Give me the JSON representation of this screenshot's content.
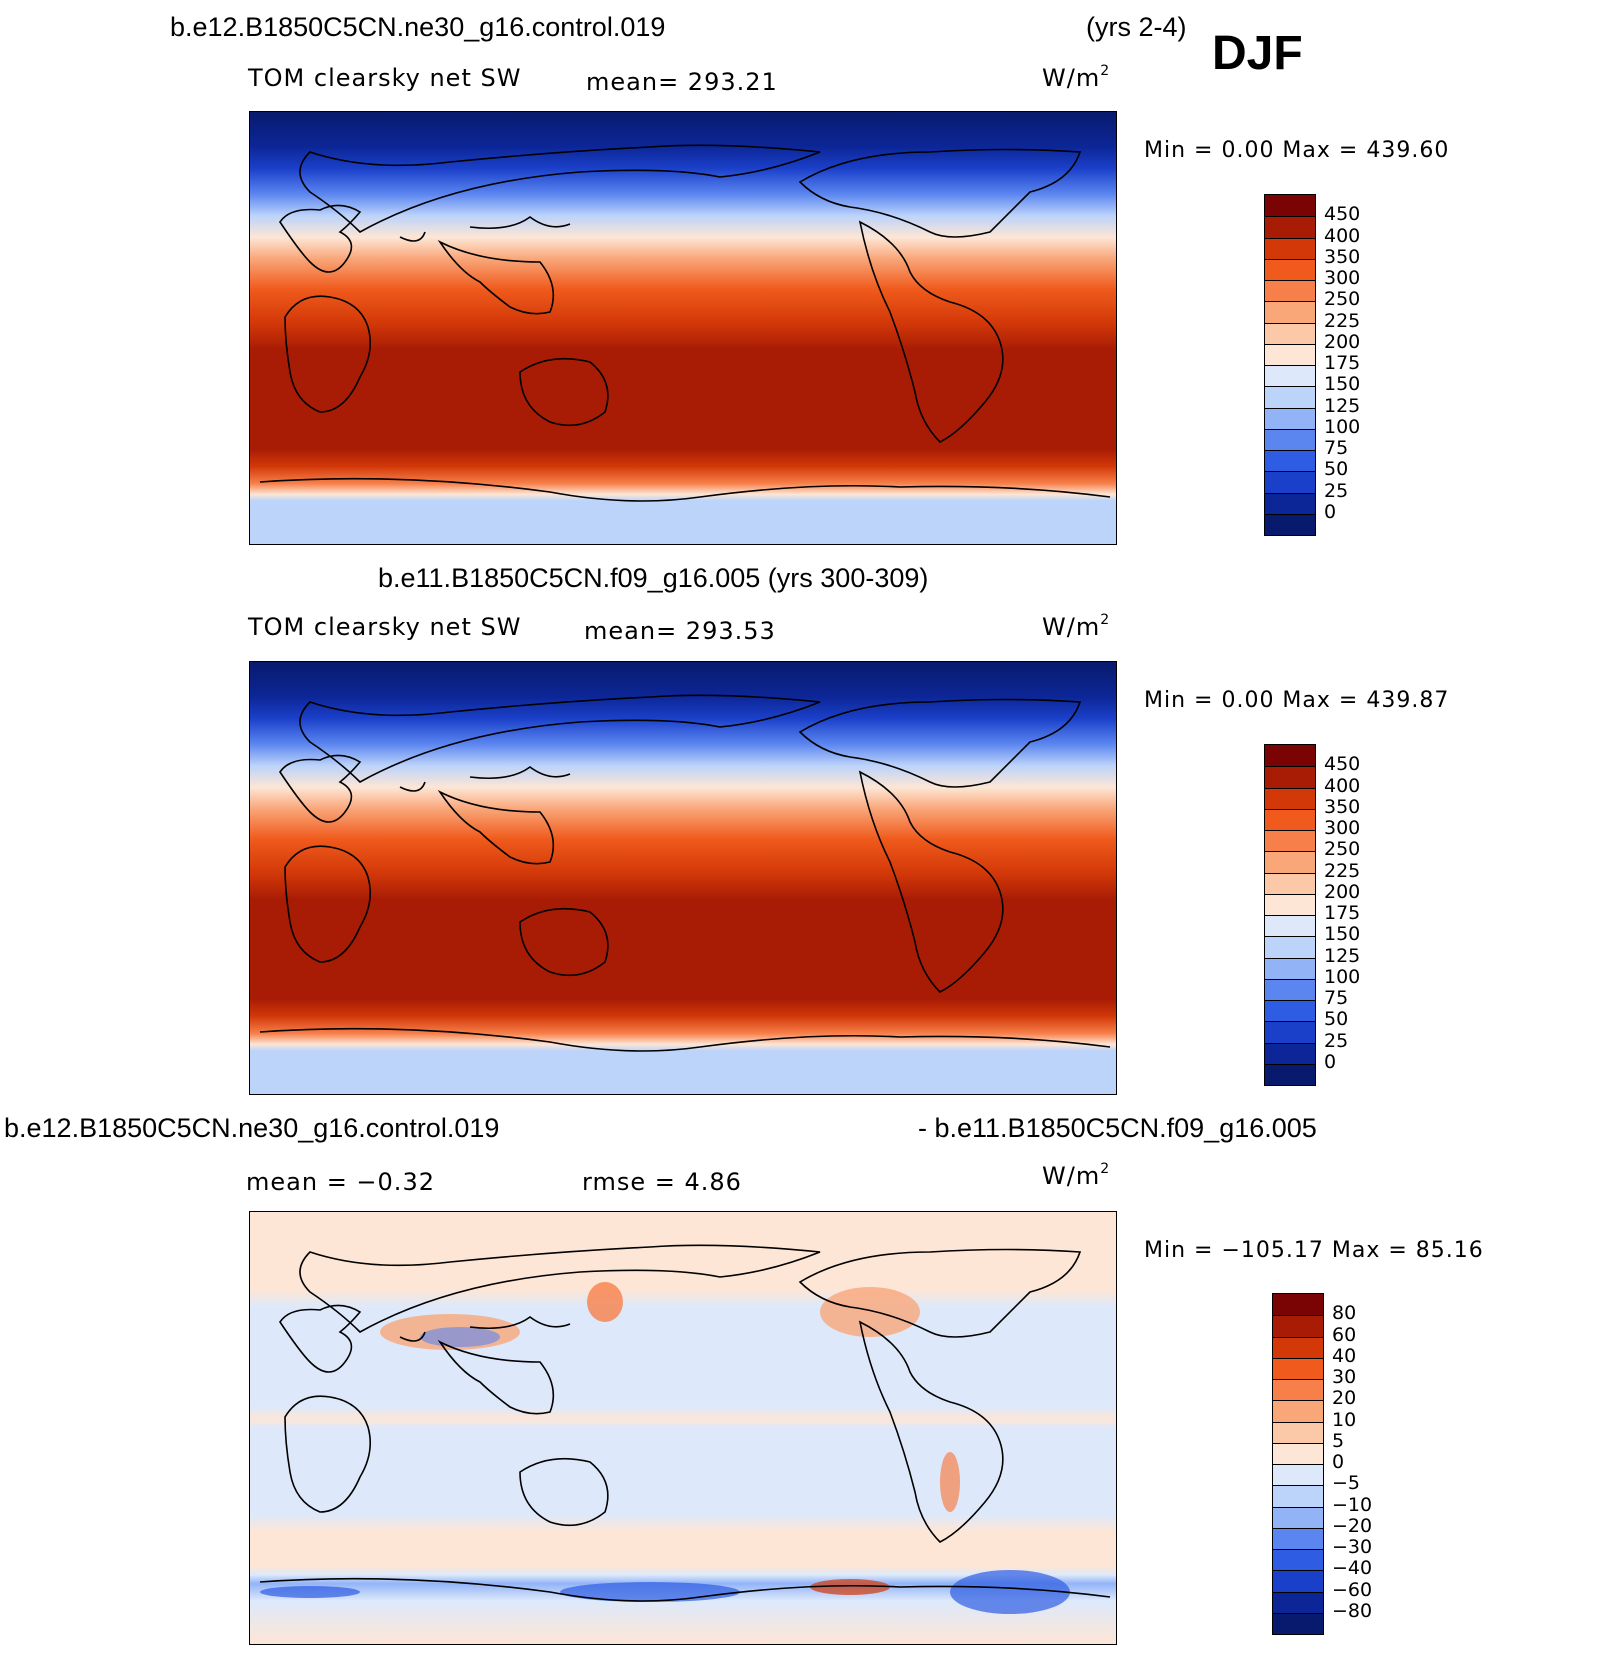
{
  "season": "DJF",
  "top": {
    "case": "b.e12.B1850C5CN.ne30_g16.control.019",
    "years": "(yrs 2-4)",
    "variable": "TOM clearsky net SW",
    "mean": "mean= 293.21",
    "units": "W/m",
    "units_sup": "2",
    "minmax": "Min =     0.00 Max = 439.60",
    "colorbar": {
      "labels": [
        "450",
        "400",
        "350",
        "300",
        "250",
        "225",
        "200",
        "175",
        "150",
        "125",
        "100",
        "75",
        "50",
        "25",
        "0"
      ],
      "colors": [
        "#7a0403",
        "#a81c05",
        "#d23808",
        "#f05a1c",
        "#f7804a",
        "#f9a679",
        "#fbc8a8",
        "#fde6d6",
        "#dde9fb",
        "#bcd3fa",
        "#92b4f7",
        "#5b86f0",
        "#2e5ce3",
        "#1a3fc9",
        "#0c2697",
        "#081a6d"
      ]
    }
  },
  "middle": {
    "case": "b.e11.B1850C5CN.f09_g16.005 (yrs 300-309)",
    "variable": "TOM clearsky net SW",
    "mean": "mean= 293.53",
    "units": "W/m",
    "units_sup": "2",
    "minmax": "Min =     0.00 Max = 439.87",
    "colorbar": {
      "labels": [
        "450",
        "400",
        "350",
        "300",
        "250",
        "225",
        "200",
        "175",
        "150",
        "125",
        "100",
        "75",
        "50",
        "25",
        "0"
      ],
      "colors": [
        "#7a0403",
        "#a81c05",
        "#d23808",
        "#f05a1c",
        "#f7804a",
        "#f9a679",
        "#fbc8a8",
        "#fde6d6",
        "#dde9fb",
        "#bcd3fa",
        "#92b4f7",
        "#5b86f0",
        "#2e5ce3",
        "#1a3fc9",
        "#0c2697",
        "#081a6d"
      ]
    }
  },
  "bottom": {
    "case_left": "b.e12.B1850C5CN.ne30_g16.control.019",
    "case_right": "- b.e11.B1850C5CN.f09_g16.005",
    "mean": "mean =   −0.32",
    "rmse": "rmse =    4.86",
    "units": "W/m",
    "units_sup": "2",
    "minmax": "Min = −105.17 Max =   85.16",
    "colorbar": {
      "labels": [
        "80",
        "60",
        "40",
        "30",
        "20",
        "10",
        "5",
        "0",
        "−5",
        "−10",
        "−20",
        "−30",
        "−40",
        "−60",
        "−80"
      ],
      "colors": [
        "#7a0403",
        "#a81c05",
        "#d23808",
        "#f05a1c",
        "#f7804a",
        "#f9a679",
        "#fbc8a8",
        "#fde6d6",
        "#dde9fb",
        "#bcd3fa",
        "#92b4f7",
        "#5b86f0",
        "#2e5ce3",
        "#1a3fc9",
        "#0c2697",
        "#081a6d"
      ]
    }
  }
}
